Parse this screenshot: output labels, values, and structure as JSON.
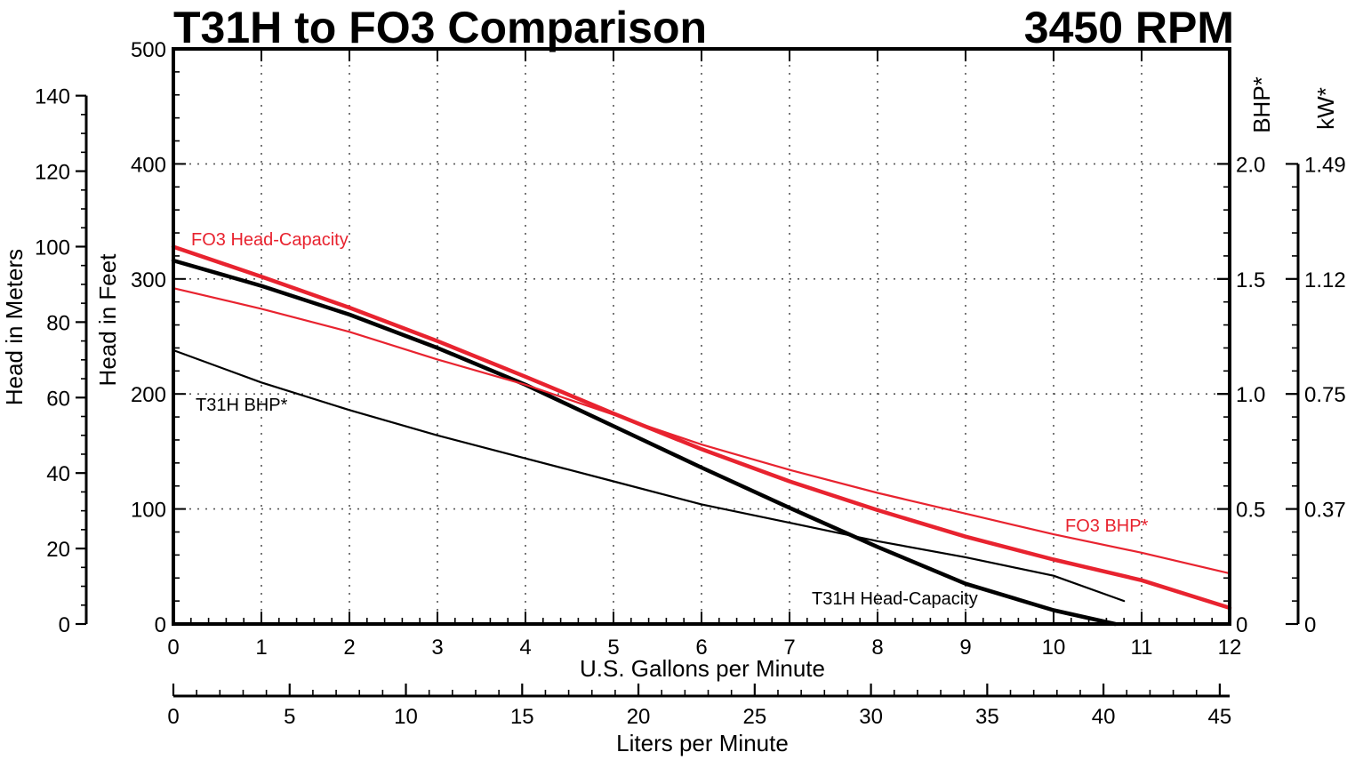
{
  "chart_data": {
    "type": "line",
    "title": "T31H to FO3 Comparison",
    "subtitle": "3450 RPM",
    "xlabel": "U.S. Gallons per Minute",
    "x2label": "Liters per Minute",
    "ylabel_left_inner": "Head in Feet",
    "ylabel_left_outer": "Head in Meters",
    "ylabel_right_inner": "BHP*",
    "ylabel_right_outer": "kW*",
    "xlim": [
      0,
      12
    ],
    "ylim": [
      0,
      500
    ],
    "grid": true,
    "x_ticks": [
      "0",
      "1",
      "2",
      "3",
      "4",
      "5",
      "6",
      "7",
      "8",
      "9",
      "10",
      "11",
      "12"
    ],
    "x2_ticks": [
      "0",
      "5",
      "10",
      "15",
      "20",
      "25",
      "30",
      "35",
      "40",
      "45"
    ],
    "y_ticks": [
      "0",
      "100",
      "200",
      "300",
      "400",
      "500"
    ],
    "meters_ticks": [
      "0",
      "20",
      "40",
      "60",
      "80",
      "100",
      "120",
      "140"
    ],
    "bhp_ticks": [
      "0",
      "0.5",
      "1.0",
      "1.5",
      "2.0"
    ],
    "kw_ticks": [
      "0",
      "0.37",
      "0.75",
      "1.12",
      "1.49"
    ],
    "series": [
      {
        "name": "FO3 Head-Capacity",
        "axis": "head_ft",
        "color": "#e8232f",
        "weight": "bold",
        "x": [
          0,
          1,
          2,
          3,
          4,
          5,
          6,
          7,
          8,
          9,
          10,
          11,
          12
        ],
        "y": [
          328,
          302,
          275,
          246,
          215,
          183,
          152,
          124,
          99,
          76,
          56,
          38,
          14
        ]
      },
      {
        "name": "T31H Head-Capacity",
        "axis": "head_ft",
        "color": "#000000",
        "weight": "bold",
        "x": [
          0,
          1,
          2,
          3,
          4,
          5,
          6,
          7,
          8,
          9,
          10,
          10.7
        ],
        "y": [
          316,
          294,
          269,
          240,
          208,
          172,
          136,
          101,
          67,
          35,
          12,
          0
        ]
      },
      {
        "name": "FO3 BHP*",
        "axis": "bhp",
        "color": "#e8232f",
        "weight": "thin",
        "x": [
          0,
          1,
          2,
          3,
          4,
          5,
          6,
          7,
          8,
          9,
          10,
          11,
          12
        ],
        "y": [
          1.46,
          1.37,
          1.27,
          1.15,
          1.04,
          0.91,
          0.78,
          0.67,
          0.57,
          0.48,
          0.39,
          0.31,
          0.22
        ]
      },
      {
        "name": "T31H BHP*",
        "axis": "bhp",
        "color": "#000000",
        "weight": "thin",
        "x": [
          0,
          1,
          2,
          3,
          4,
          5,
          6,
          7,
          8,
          9,
          10,
          10.8
        ],
        "y": [
          1.19,
          1.05,
          0.93,
          0.82,
          0.72,
          0.62,
          0.52,
          0.44,
          0.36,
          0.29,
          0.21,
          0.1
        ]
      }
    ],
    "annotations": [
      {
        "text": "FO3 Head-Capacity",
        "color": "#e8232f"
      },
      {
        "text": "T31H BHP*",
        "color": "#000000"
      },
      {
        "text": "FO3 BHP*",
        "color": "#e8232f"
      },
      {
        "text": "T31H Head-Capacity",
        "color": "#000000"
      }
    ]
  }
}
